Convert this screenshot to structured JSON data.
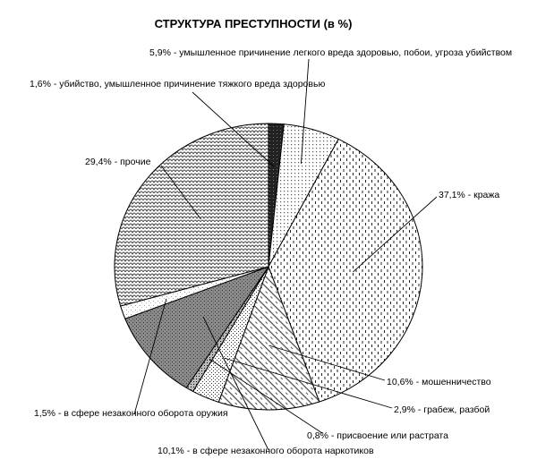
{
  "chart_data": {
    "type": "pie",
    "title": "СТРУКТУРА ПРЕСТУПНОСТИ  (в %)",
    "slices": [
      {
        "label": "1,6% - убийство, умышленное причинение тяжкого вреда здоровью",
        "value": 1.6
      },
      {
        "label": "5,9% - умышленное причинение легкого вреда здоровью, побои, угроза убийством",
        "value": 5.9
      },
      {
        "label": "37,1% - кража",
        "value": 37.1
      },
      {
        "label": "10,6% - мошенничество",
        "value": 10.6
      },
      {
        "label": "2,9% - грабеж, разбой",
        "value": 2.9
      },
      {
        "label": "0,8% - присвоение или растрата",
        "value": 0.8
      },
      {
        "label": "10,1% - в сфере незаконного оборота наркотиков",
        "value": 10.1
      },
      {
        "label": "1,5% - в сфере незаконного оборота оружия",
        "value": 1.5
      },
      {
        "label": "29,4% - прочие",
        "value": 29.4
      }
    ]
  }
}
